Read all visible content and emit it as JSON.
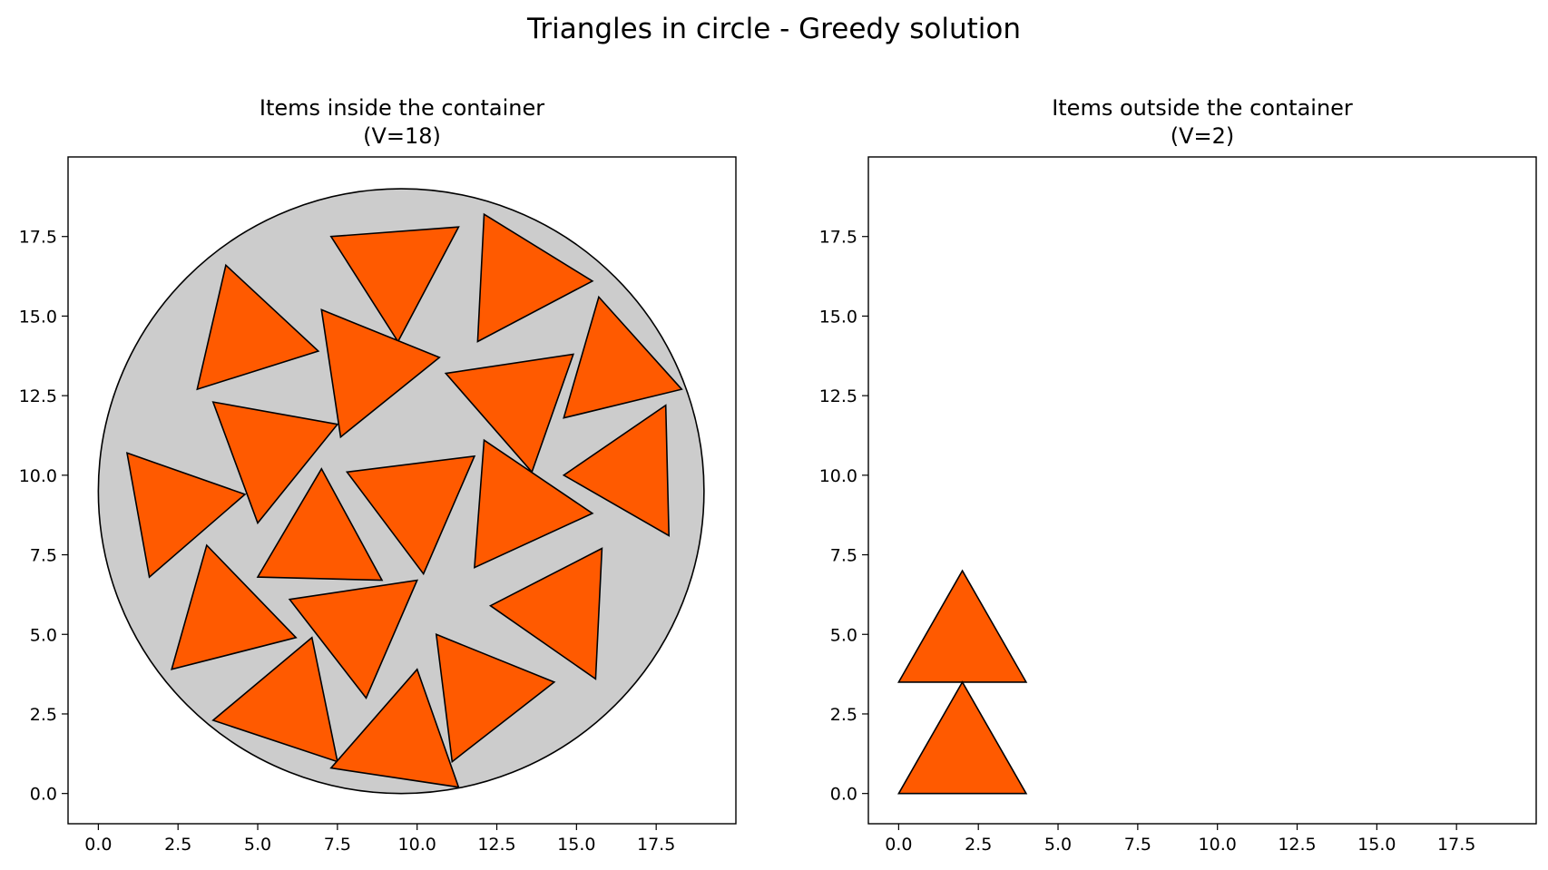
{
  "figure": {
    "suptitle": "Triangles in circle - Greedy solution"
  },
  "colors": {
    "item_fill": "#ff5a00",
    "item_edge": "#000000",
    "container_fill": "#cccccc",
    "container_edge": "#000000",
    "background": "#ffffff"
  },
  "chart_data": [
    {
      "type": "scatter",
      "title": "Items inside the container\n(V=18)",
      "title_lines": [
        "Items inside the container",
        "(V=18)"
      ],
      "xlabel": "",
      "ylabel": "",
      "xlim": [
        -0.95,
        20.0
      ],
      "ylim": [
        -0.95,
        20.0
      ],
      "xticks": [
        0.0,
        2.5,
        5.0,
        7.5,
        10.0,
        12.5,
        15.0,
        17.5
      ],
      "yticks": [
        0.0,
        2.5,
        5.0,
        7.5,
        10.0,
        12.5,
        15.0,
        17.5
      ],
      "xtick_labels": [
        "0.0",
        "2.5",
        "5.0",
        "7.5",
        "10.0",
        "12.5",
        "15.0",
        "17.5"
      ],
      "ytick_labels": [
        "0.0",
        "2.5",
        "5.0",
        "7.5",
        "10.0",
        "12.5",
        "15.0",
        "17.5"
      ],
      "grid": false,
      "container": {
        "shape": "circle",
        "center": [
          9.5,
          9.5
        ],
        "radius": 9.5
      },
      "items": [
        [
          [
            7.3,
            17.5
          ],
          [
            11.3,
            17.8
          ],
          [
            9.4,
            14.2
          ]
        ],
        [
          [
            12.1,
            18.2
          ],
          [
            15.5,
            16.1
          ],
          [
            11.9,
            14.2
          ]
        ],
        [
          [
            4.0,
            16.6
          ],
          [
            6.9,
            13.9
          ],
          [
            3.1,
            12.7
          ]
        ],
        [
          [
            7.0,
            15.2
          ],
          [
            10.7,
            13.7
          ],
          [
            7.6,
            11.2
          ]
        ],
        [
          [
            15.7,
            15.6
          ],
          [
            18.3,
            12.7
          ],
          [
            14.6,
            11.8
          ]
        ],
        [
          [
            10.9,
            13.2
          ],
          [
            14.9,
            13.8
          ],
          [
            13.6,
            10.1
          ]
        ],
        [
          [
            3.6,
            12.3
          ],
          [
            7.5,
            11.6
          ],
          [
            5.0,
            8.5
          ]
        ],
        [
          [
            0.9,
            10.7
          ],
          [
            4.6,
            9.4
          ],
          [
            1.6,
            6.8
          ]
        ],
        [
          [
            17.8,
            12.2
          ],
          [
            17.9,
            8.1
          ],
          [
            14.6,
            10.0
          ]
        ],
        [
          [
            7.0,
            10.2
          ],
          [
            5.0,
            6.8
          ],
          [
            8.9,
            6.7
          ]
        ],
        [
          [
            7.8,
            10.1
          ],
          [
            11.8,
            10.6
          ],
          [
            10.2,
            6.9
          ]
        ],
        [
          [
            12.1,
            11.1
          ],
          [
            15.5,
            8.8
          ],
          [
            11.8,
            7.1
          ]
        ],
        [
          [
            3.4,
            7.8
          ],
          [
            6.2,
            4.9
          ],
          [
            2.3,
            3.9
          ]
        ],
        [
          [
            15.8,
            7.7
          ],
          [
            12.3,
            5.9
          ],
          [
            15.6,
            3.6
          ]
        ],
        [
          [
            6.0,
            6.1
          ],
          [
            10.0,
            6.7
          ],
          [
            8.4,
            3.0
          ]
        ],
        [
          [
            6.7,
            4.9
          ],
          [
            3.6,
            2.3
          ],
          [
            7.5,
            1.0
          ]
        ],
        [
          [
            10.6,
            5.0
          ],
          [
            14.3,
            3.5
          ],
          [
            11.1,
            1.0
          ]
        ],
        [
          [
            10.0,
            3.9
          ],
          [
            11.3,
            0.2
          ],
          [
            7.3,
            0.8
          ]
        ]
      ]
    },
    {
      "type": "scatter",
      "title": "Items outside the container\n(V=2)",
      "title_lines": [
        "Items outside the container",
        "(V=2)"
      ],
      "xlabel": "",
      "ylabel": "",
      "xlim": [
        -0.95,
        20.0
      ],
      "ylim": [
        -0.95,
        20.0
      ],
      "xticks": [
        0.0,
        2.5,
        5.0,
        7.5,
        10.0,
        12.5,
        15.0,
        17.5
      ],
      "yticks": [
        0.0,
        2.5,
        5.0,
        7.5,
        10.0,
        12.5,
        15.0,
        17.5
      ],
      "xtick_labels": [
        "0.0",
        "2.5",
        "5.0",
        "7.5",
        "10.0",
        "12.5",
        "15.0",
        "17.5"
      ],
      "ytick_labels": [
        "0.0",
        "2.5",
        "5.0",
        "7.5",
        "10.0",
        "12.5",
        "15.0",
        "17.5"
      ],
      "grid": false,
      "items": [
        [
          [
            0.0,
            3.5
          ],
          [
            4.0,
            3.5
          ],
          [
            2.0,
            7.0
          ]
        ],
        [
          [
            0.0,
            0.0
          ],
          [
            4.0,
            0.0
          ],
          [
            2.0,
            3.5
          ]
        ]
      ]
    }
  ]
}
